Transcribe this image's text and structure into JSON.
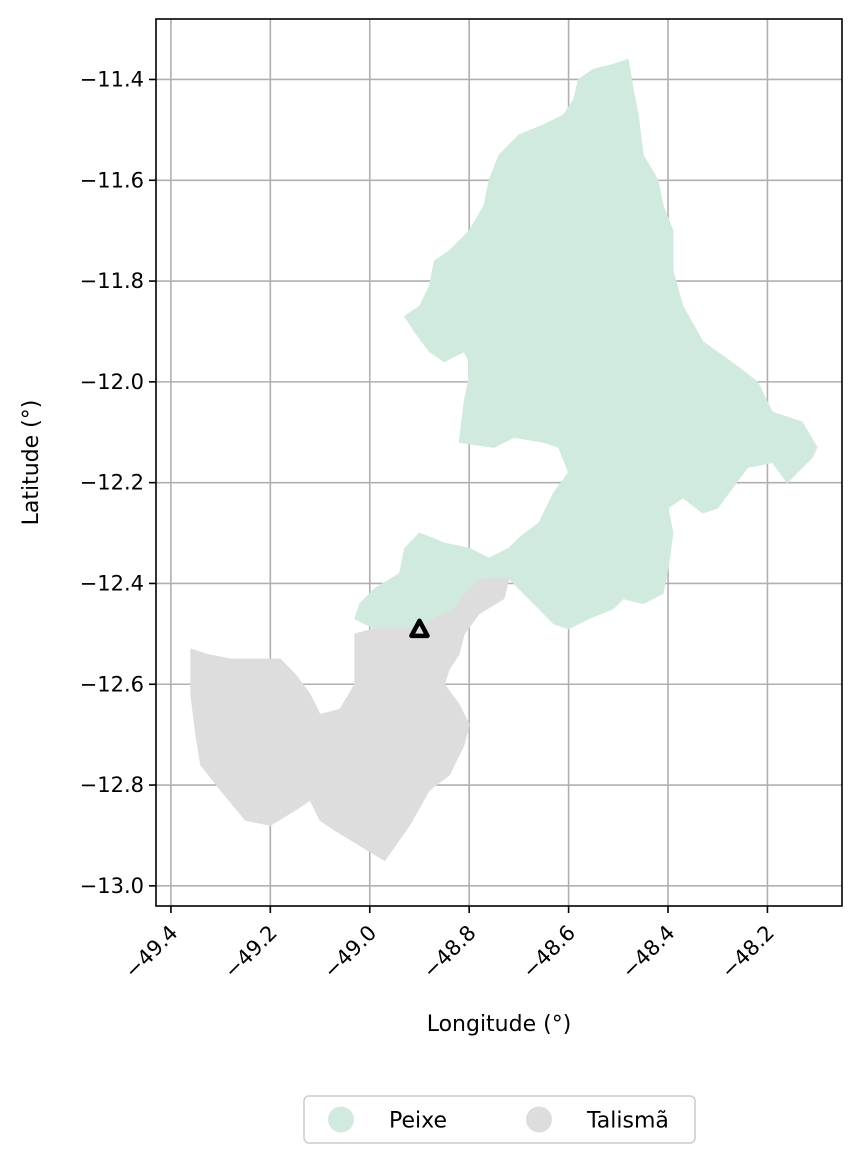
{
  "chart_data": {
    "type": "map",
    "xlabel": "Longitude (°)",
    "ylabel": "Latitude (°)",
    "xlim": [
      -49.43,
      -48.05
    ],
    "ylim": [
      -13.04,
      -11.28
    ],
    "x_ticks": [
      -49.4,
      -49.2,
      -49.0,
      -48.8,
      -48.6,
      -48.4,
      -48.2
    ],
    "x_tick_labels": [
      "−49.4",
      "−49.2",
      "−49.0",
      "−48.8",
      "−48.6",
      "−48.4",
      "−48.2"
    ],
    "y_ticks": [
      -11.4,
      -11.6,
      -11.8,
      -12.0,
      -12.2,
      -12.4,
      -12.6,
      -12.8,
      -13.0
    ],
    "y_tick_labels": [
      "−11.4",
      "−11.6",
      "−11.8",
      "−12.0",
      "−12.2",
      "−12.4",
      "−12.6",
      "−12.8",
      "−13.0"
    ],
    "grid": true,
    "legend_position": "bottom-center",
    "regions": [
      {
        "name": "Peixe",
        "color": "#d0ebde",
        "polygon": [
          [
            -48.48,
            -11.36
          ],
          [
            -48.47,
            -11.42
          ],
          [
            -48.46,
            -11.47
          ],
          [
            -48.45,
            -11.55
          ],
          [
            -48.42,
            -11.6
          ],
          [
            -48.41,
            -11.65
          ],
          [
            -48.39,
            -11.7
          ],
          [
            -48.39,
            -11.78
          ],
          [
            -48.37,
            -11.85
          ],
          [
            -48.33,
            -11.92
          ],
          [
            -48.26,
            -11.97
          ],
          [
            -48.22,
            -12.0
          ],
          [
            -48.19,
            -12.06
          ],
          [
            -48.16,
            -12.07
          ],
          [
            -48.13,
            -12.08
          ],
          [
            -48.1,
            -12.13
          ],
          [
            -48.11,
            -12.15
          ],
          [
            -48.13,
            -12.17
          ],
          [
            -48.16,
            -12.2
          ],
          [
            -48.19,
            -12.16
          ],
          [
            -48.24,
            -12.17
          ],
          [
            -48.27,
            -12.21
          ],
          [
            -48.3,
            -12.25
          ],
          [
            -48.33,
            -12.26
          ],
          [
            -48.37,
            -12.23
          ],
          [
            -48.4,
            -12.25
          ],
          [
            -48.39,
            -12.3
          ],
          [
            -48.4,
            -12.37
          ],
          [
            -48.41,
            -12.42
          ],
          [
            -48.45,
            -12.44
          ],
          [
            -48.49,
            -12.43
          ],
          [
            -48.51,
            -12.45
          ],
          [
            -48.56,
            -12.47
          ],
          [
            -48.6,
            -12.49
          ],
          [
            -48.63,
            -12.48
          ],
          [
            -48.66,
            -12.45
          ],
          [
            -48.7,
            -12.41
          ],
          [
            -48.72,
            -12.39
          ],
          [
            -48.77,
            -12.39
          ],
          [
            -48.8,
            -12.41
          ],
          [
            -48.83,
            -12.45
          ],
          [
            -48.87,
            -12.47
          ],
          [
            -48.9,
            -12.49
          ],
          [
            -48.95,
            -12.49
          ],
          [
            -48.99,
            -12.49
          ],
          [
            -49.03,
            -12.47
          ],
          [
            -49.02,
            -12.44
          ],
          [
            -48.99,
            -12.41
          ],
          [
            -48.94,
            -12.38
          ],
          [
            -48.93,
            -12.33
          ],
          [
            -48.9,
            -12.3
          ],
          [
            -48.85,
            -12.32
          ],
          [
            -48.8,
            -12.33
          ],
          [
            -48.76,
            -12.35
          ],
          [
            -48.72,
            -12.33
          ],
          [
            -48.7,
            -12.31
          ],
          [
            -48.66,
            -12.28
          ],
          [
            -48.63,
            -12.22
          ],
          [
            -48.6,
            -12.18
          ],
          [
            -48.62,
            -12.13
          ],
          [
            -48.65,
            -12.12
          ],
          [
            -48.71,
            -12.11
          ],
          [
            -48.75,
            -12.13
          ],
          [
            -48.82,
            -12.12
          ],
          [
            -48.81,
            -12.04
          ],
          [
            -48.8,
            -11.99
          ],
          [
            -48.8,
            -11.96
          ],
          [
            -48.81,
            -11.94
          ],
          [
            -48.85,
            -11.96
          ],
          [
            -48.88,
            -11.94
          ],
          [
            -48.91,
            -11.9
          ],
          [
            -48.93,
            -11.87
          ],
          [
            -48.9,
            -11.85
          ],
          [
            -48.88,
            -11.81
          ],
          [
            -48.87,
            -11.76
          ],
          [
            -48.84,
            -11.74
          ],
          [
            -48.8,
            -11.7
          ],
          [
            -48.77,
            -11.65
          ],
          [
            -48.76,
            -11.6
          ],
          [
            -48.74,
            -11.55
          ],
          [
            -48.7,
            -11.51
          ],
          [
            -48.65,
            -11.49
          ],
          [
            -48.61,
            -11.47
          ],
          [
            -48.59,
            -11.44
          ],
          [
            -48.58,
            -11.4
          ],
          [
            -48.55,
            -11.38
          ],
          [
            -48.51,
            -11.37
          ]
        ]
      },
      {
        "name": "Talismã",
        "color": "#dddddd",
        "polygon": [
          [
            -48.77,
            -12.39
          ],
          [
            -48.72,
            -12.39
          ],
          [
            -48.73,
            -12.43
          ],
          [
            -48.78,
            -12.46
          ],
          [
            -48.81,
            -12.5
          ],
          [
            -48.82,
            -12.54
          ],
          [
            -48.84,
            -12.57
          ],
          [
            -48.85,
            -12.6
          ],
          [
            -48.82,
            -12.64
          ],
          [
            -48.8,
            -12.68
          ],
          [
            -48.81,
            -12.72
          ],
          [
            -48.84,
            -12.78
          ],
          [
            -48.88,
            -12.81
          ],
          [
            -48.92,
            -12.88
          ],
          [
            -48.97,
            -12.95
          ],
          [
            -49.02,
            -12.92
          ],
          [
            -49.07,
            -12.89
          ],
          [
            -49.1,
            -12.87
          ],
          [
            -49.12,
            -12.83
          ],
          [
            -49.15,
            -12.85
          ],
          [
            -49.2,
            -12.88
          ],
          [
            -49.25,
            -12.87
          ],
          [
            -49.3,
            -12.81
          ],
          [
            -49.34,
            -12.76
          ],
          [
            -49.35,
            -12.7
          ],
          [
            -49.36,
            -12.62
          ],
          [
            -49.36,
            -12.53
          ],
          [
            -49.33,
            -12.54
          ],
          [
            -49.28,
            -12.55
          ],
          [
            -49.23,
            -12.55
          ],
          [
            -49.18,
            -12.55
          ],
          [
            -49.15,
            -12.58
          ],
          [
            -49.12,
            -12.62
          ],
          [
            -49.1,
            -12.66
          ],
          [
            -49.06,
            -12.65
          ],
          [
            -49.03,
            -12.6
          ],
          [
            -49.03,
            -12.5
          ],
          [
            -48.99,
            -12.49
          ],
          [
            -48.95,
            -12.49
          ],
          [
            -48.9,
            -12.49
          ],
          [
            -48.87,
            -12.47
          ],
          [
            -48.83,
            -12.45
          ],
          [
            -48.8,
            -12.41
          ]
        ]
      }
    ],
    "marker": {
      "shape": "triangle-outline",
      "color": "#000000",
      "lon": -48.9,
      "lat": -12.49
    }
  },
  "legend": {
    "items": [
      {
        "label": "Peixe",
        "color": "#d0ebde"
      },
      {
        "label": "Talismã",
        "color": "#dddddd"
      }
    ]
  }
}
